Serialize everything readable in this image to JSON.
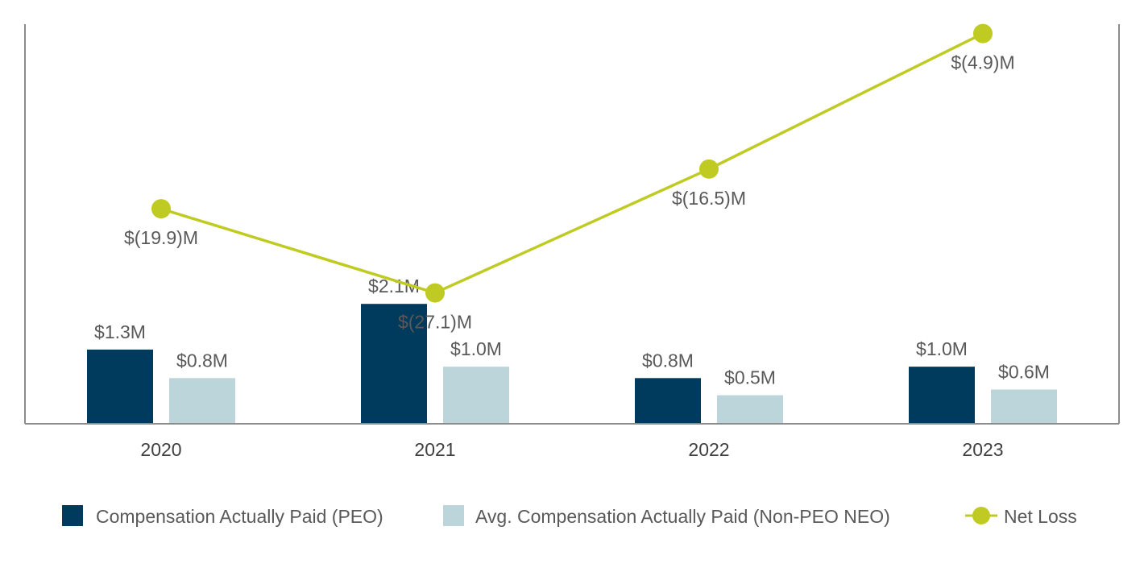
{
  "chart_data": {
    "type": "bar+line",
    "categories": [
      "2020",
      "2021",
      "2022",
      "2023"
    ],
    "series": [
      {
        "name": "Compensation Actually Paid (PEO)",
        "type": "bar",
        "color": "#003a5d",
        "values": [
          1.3,
          2.1,
          0.8,
          1.0
        ],
        "labels": [
          "$1.3M",
          "$2.1M",
          "$0.8M",
          "$1.0M"
        ]
      },
      {
        "name": "Avg. Compensation Actually Paid (Non-PEO NEO)",
        "type": "bar",
        "color": "#bcd5da",
        "values": [
          0.8,
          1.0,
          0.5,
          0.6
        ],
        "labels": [
          "$0.8M",
          "$1.0M",
          "$0.5M",
          "$0.6M"
        ]
      },
      {
        "name": "Net Loss",
        "type": "line",
        "color": "#bfcb23",
        "values": [
          -19.9,
          -27.1,
          -16.5,
          -4.9
        ],
        "labels": [
          "$(19.9)M",
          "$(27.1)M",
          "$(16.5)M",
          "$(4.9)M"
        ]
      }
    ],
    "bar_axis_range": [
      0,
      7
    ],
    "line_axis_range": [
      -38.3,
      -4.1
    ],
    "legend_position": "bottom",
    "gridlines": false
  }
}
